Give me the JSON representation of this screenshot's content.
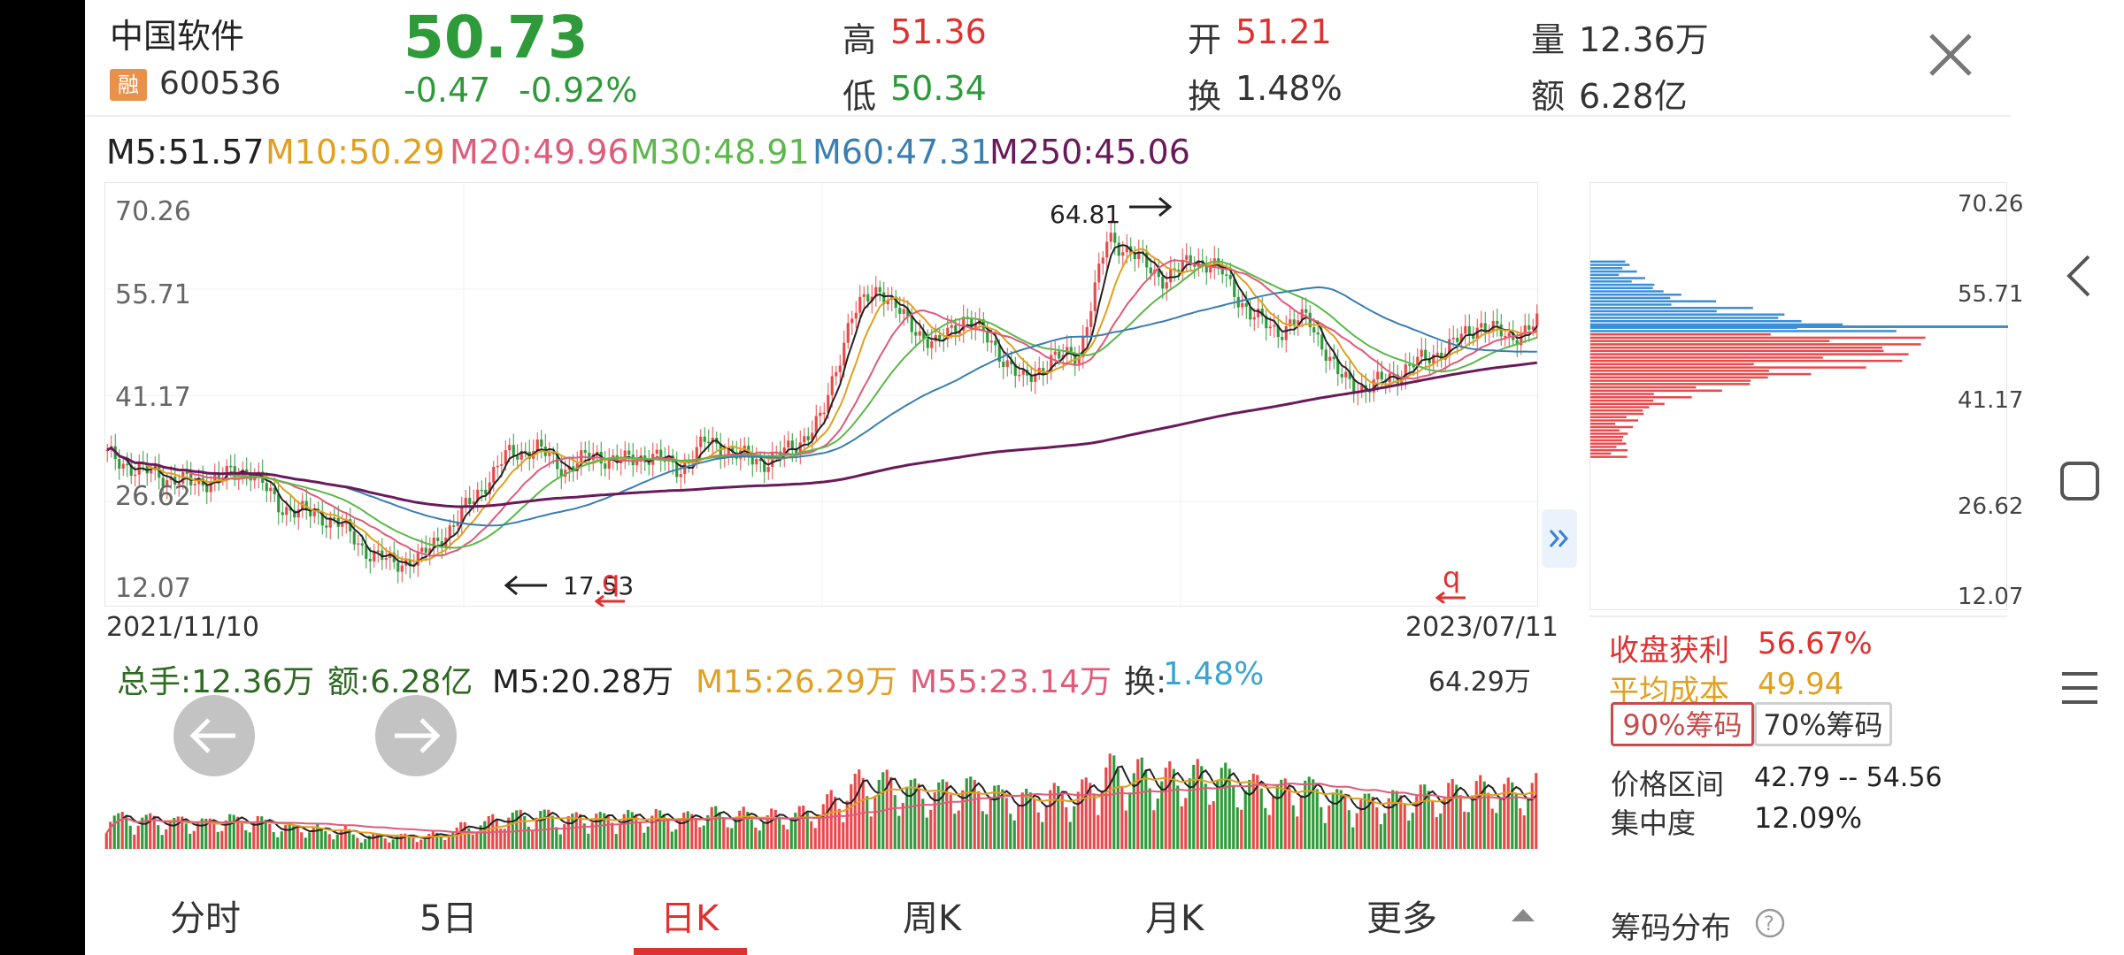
{
  "stock": {
    "name": "中国软件",
    "margin_badge": "融",
    "code": "600536",
    "price": "50.73",
    "change": "-0.47",
    "change_pct": "-0.92%"
  },
  "quote": {
    "high_label": "高",
    "high": "51.36",
    "low_label": "低",
    "low": "50.34",
    "open_label": "开",
    "open": "51.21",
    "turnover_label": "换",
    "turnover": "1.48%",
    "volume_label": "量",
    "volume": "12.36万",
    "amount_label": "额",
    "amount": "6.28亿"
  },
  "ma_legend": [
    {
      "text": "M5:51.57",
      "color": "#222222"
    },
    {
      "text": "M10:50.29",
      "color": "#e0a020"
    },
    {
      "text": "M20:49.96",
      "color": "#e05a7a"
    },
    {
      "text": "M30:48.91",
      "color": "#5cb84a"
    },
    {
      "text": "M60:47.31",
      "color": "#3a7fb0"
    },
    {
      "text": "M250:45.06",
      "color": "#6a1a5a"
    }
  ],
  "chart_data": {
    "type": "candlestick",
    "start_date": "2021/11/10",
    "end_date": "2023/07/11",
    "y_ticks": [
      "70.26",
      "55.71",
      "41.17",
      "26.62",
      "12.07"
    ],
    "ylim": [
      12.07,
      70.26
    ],
    "annotations": {
      "high": "64.81",
      "low": "17.53"
    },
    "close_path": [
      33,
      31,
      30,
      29,
      30,
      31,
      26,
      25,
      24,
      20,
      18,
      19,
      23,
      28,
      33,
      34,
      31,
      33,
      32,
      33,
      31,
      35,
      33,
      32,
      34,
      38,
      52,
      56,
      51,
      48,
      52,
      48,
      43,
      46,
      47,
      63,
      60,
      57,
      60,
      58,
      52,
      50,
      52,
      44,
      42,
      44,
      46,
      48,
      51,
      49,
      51
    ]
  },
  "volume_legend": {
    "total": "总手:12.36万",
    "amount": "额:6.28亿",
    "m5": "M5:20.28万",
    "m15": "M15:26.29万",
    "m55": "M55:23.14万",
    "turnover_label": "换:",
    "turnover_value": "1.48%",
    "max": "64.29万"
  },
  "tabs": [
    "分时",
    "5日",
    "日K",
    "周K",
    "月K",
    "更多"
  ],
  "chip": {
    "y_ticks": [
      "70.26",
      "55.71",
      "41.17",
      "26.62",
      "12.07"
    ],
    "profit_label": "收盘获利",
    "profit": "56.67%",
    "avg_label": "平均成本",
    "avg": "49.94",
    "btn90": "90%筹码",
    "btn70": "70%筹码",
    "range_label": "价格区间",
    "range": "42.79 -- 54.56",
    "conc_label": "集中度",
    "conc": "12.09%",
    "dist_label": "筹码分布"
  }
}
